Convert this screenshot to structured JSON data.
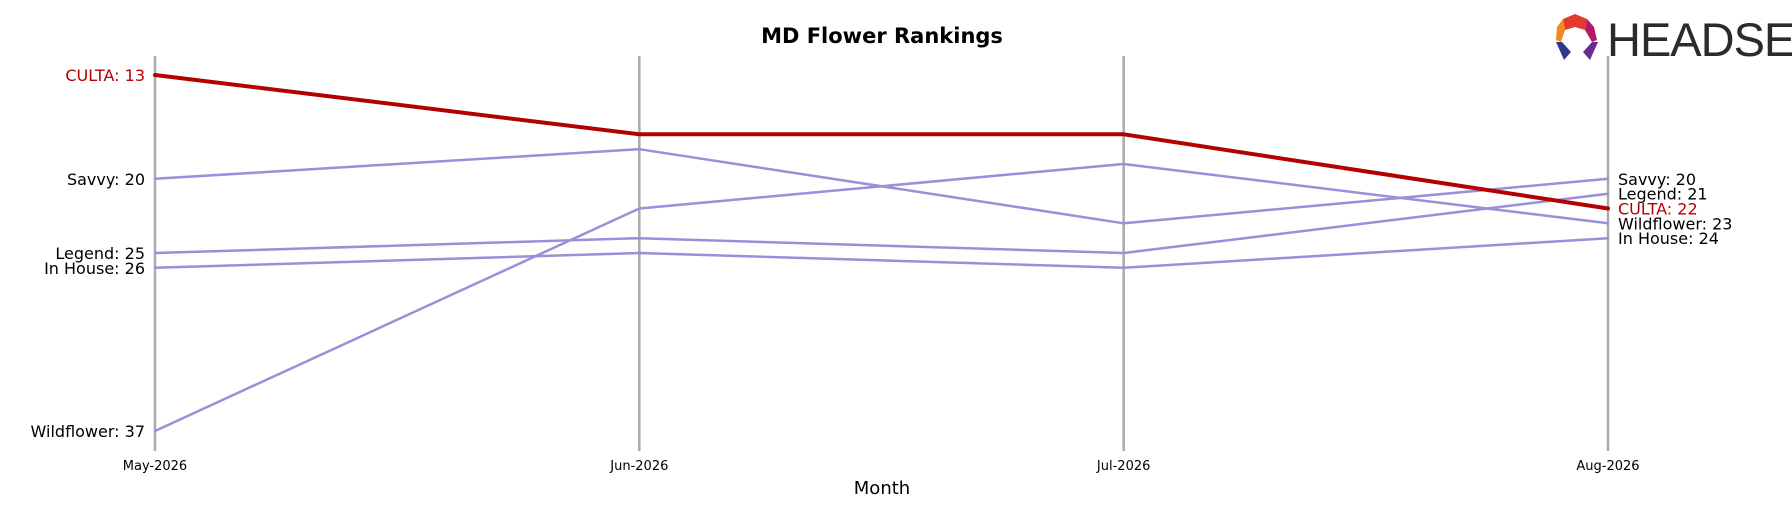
{
  "chart_data": {
    "type": "line",
    "title": "MD Flower Rankings",
    "xlabel": "Month",
    "ylabel": "",
    "categories": [
      "May-2026",
      "Jun-2026",
      "Jul-2026",
      "Aug-2026"
    ],
    "y_inverted": true,
    "ylim": [
      13,
      37
    ],
    "grid": false,
    "highlight_color": "#b30000",
    "other_color": "#9a8fd8",
    "axis_color": "#aaaaaa",
    "series": [
      {
        "name": "CULTA",
        "values": [
          13,
          17,
          17,
          22
        ],
        "highlight": true
      },
      {
        "name": "Savvy",
        "values": [
          20,
          18,
          23,
          20
        ],
        "highlight": false
      },
      {
        "name": "Legend",
        "values": [
          25,
          24,
          25,
          21
        ],
        "highlight": false
      },
      {
        "name": "In House",
        "values": [
          26,
          25,
          26,
          24
        ],
        "highlight": false
      },
      {
        "name": "Wildflower",
        "values": [
          37,
          22,
          19,
          23
        ],
        "highlight": false
      }
    ],
    "start_labels": [
      {
        "series": "CULTA",
        "text": "CULTA: 13"
      },
      {
        "series": "Savvy",
        "text": "Savvy: 20"
      },
      {
        "series": "Legend",
        "text": "Legend: 25"
      },
      {
        "series": "In House",
        "text": "In House: 26"
      },
      {
        "series": "Wildflower",
        "text": "Wildflower: 37"
      }
    ],
    "end_labels": [
      {
        "series": "Savvy",
        "text": "Savvy: 20"
      },
      {
        "series": "Legend",
        "text": "Legend: 21"
      },
      {
        "series": "CULTA",
        "text": "CULTA: 22"
      },
      {
        "series": "Wildflower",
        "text": "Wildflower: 23"
      },
      {
        "series": "In House",
        "text": "In House: 24"
      }
    ]
  },
  "logo": {
    "text": "HEADSET",
    "colors": [
      "#e23b2e",
      "#f28a1e",
      "#b5176b",
      "#2d3b8c",
      "#6a2a8f"
    ]
  }
}
